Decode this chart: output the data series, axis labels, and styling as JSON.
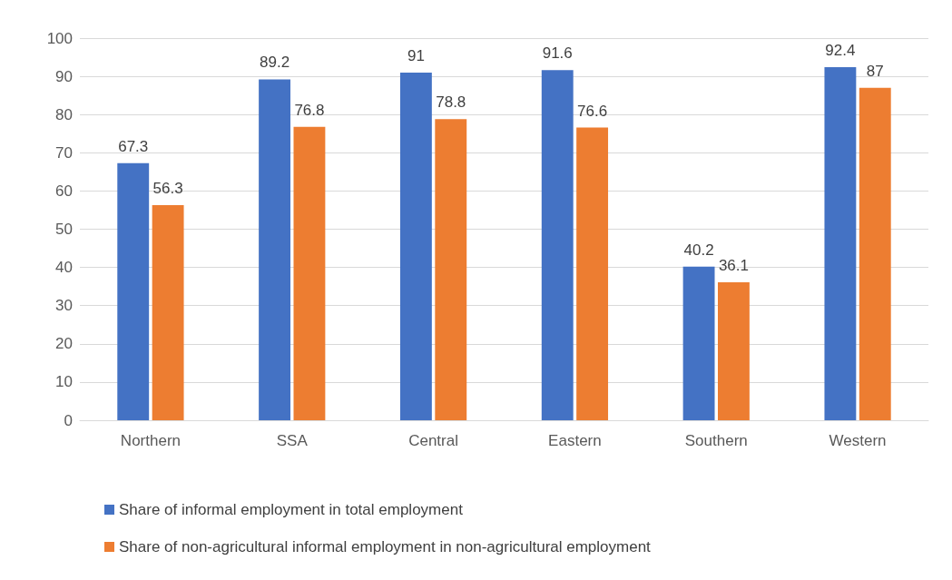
{
  "chart_data": {
    "type": "bar",
    "categories": [
      "Northern",
      "SSA",
      "Central",
      "Eastern",
      "Southern",
      "Western"
    ],
    "series": [
      {
        "name": "Share of informal employment in total employment",
        "color": "#4472c4",
        "values": [
          67.3,
          89.2,
          91,
          91.6,
          40.2,
          92.4
        ]
      },
      {
        "name": "Share of non-agricultural informal employment in non-agricultural employment",
        "color": "#ed7d31",
        "values": [
          56.3,
          76.8,
          78.8,
          76.6,
          36.1,
          87
        ]
      }
    ],
    "ylim": [
      0,
      100
    ],
    "yticks": [
      0,
      10,
      20,
      30,
      40,
      50,
      60,
      70,
      80,
      90,
      100
    ],
    "grid": "y",
    "legend": "bottom",
    "data_labels": true
  }
}
